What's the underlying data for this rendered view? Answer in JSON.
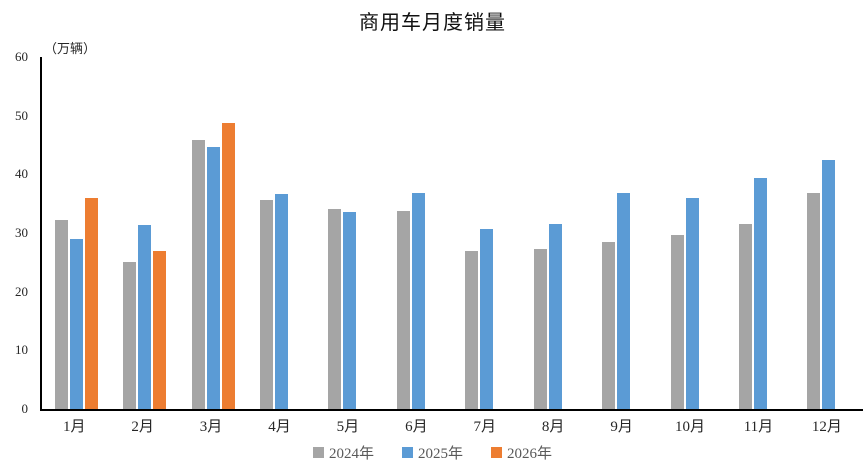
{
  "title": "商用车月度销量",
  "unit_label": "（万辆）",
  "chart_data": {
    "type": "bar",
    "title": "商用车月度销量",
    "ylabel": "（万辆）",
    "xlabel": "",
    "categories": [
      "1月",
      "2月",
      "3月",
      "4月",
      "5月",
      "6月",
      "7月",
      "8月",
      "9月",
      "10月",
      "11月",
      "12月"
    ],
    "series": [
      {
        "name": "2024年",
        "color": "#A5A5A5",
        "values": [
          32.3,
          25.1,
          45.9,
          35.7,
          34.1,
          33.8,
          26.9,
          27.2,
          28.5,
          29.7,
          31.5,
          36.8
        ]
      },
      {
        "name": "2025年",
        "color": "#5B9BD5",
        "values": [
          29.0,
          31.3,
          44.7,
          36.7,
          33.5,
          36.9,
          30.6,
          31.5,
          36.8,
          36.0,
          39.3,
          42.4
        ]
      },
      {
        "name": "2026年",
        "color": "#ED7D31",
        "values": [
          35.9,
          27.0,
          48.8,
          null,
          null,
          null,
          null,
          null,
          null,
          null,
          null,
          null
        ]
      }
    ],
    "ylim": [
      0,
      60
    ],
    "y_ticks": [
      0,
      10,
      20,
      30,
      40,
      50,
      60
    ],
    "grid": false,
    "legend_position": "bottom",
    "axis_color": "#000000",
    "background_color": "#FFFFFF"
  }
}
